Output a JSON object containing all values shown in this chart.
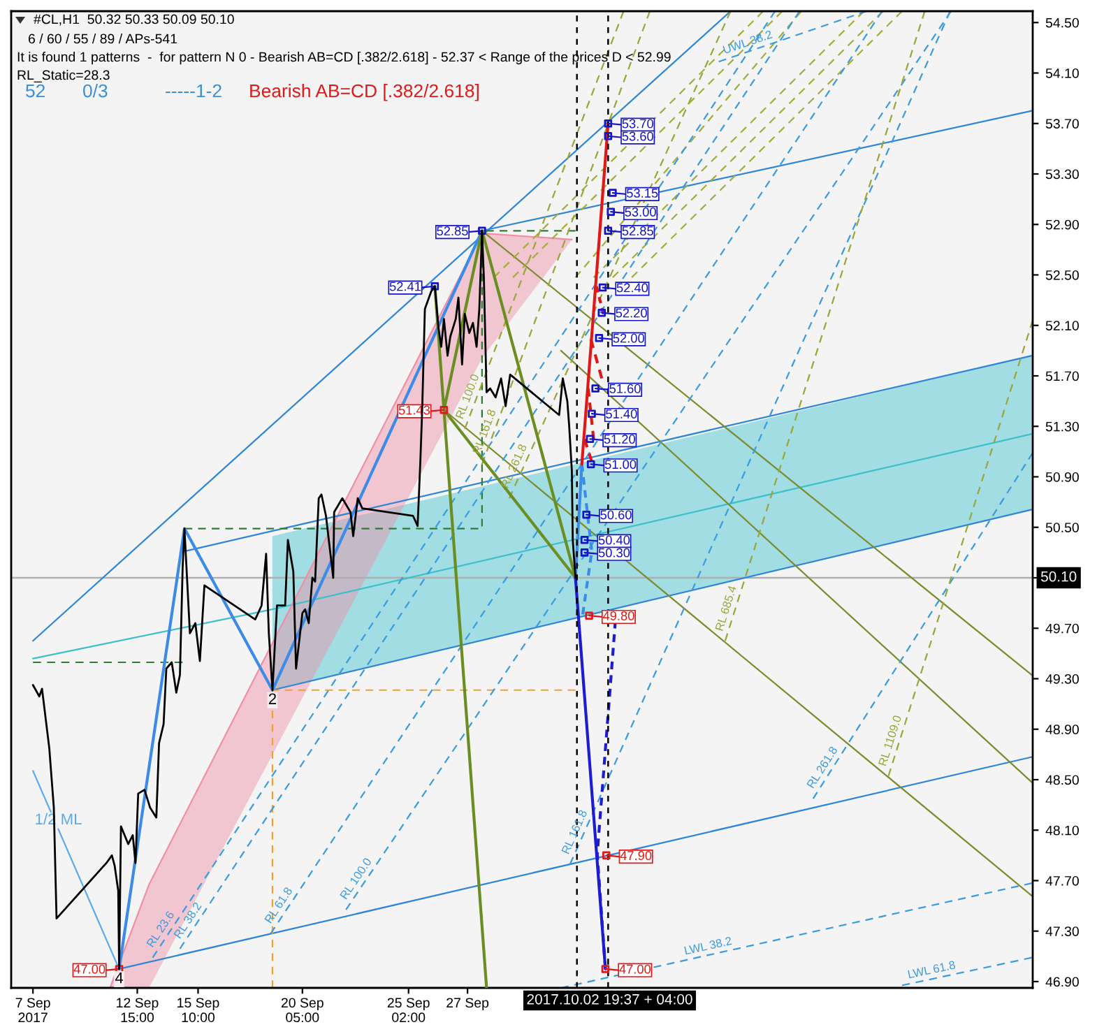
{
  "chart_data": {
    "type": "line",
    "title": "#CL,H1  50.32 50.33 50.09 50.10",
    "subtitle": "6 / 60 / 55 / 89 / APs-541",
    "annotations": [
      "It is found 1 patterns  -  for pattern N 0 - Bearish AB=CD [.382/2.618] - 52.37 < Range of the prices D < 52.99",
      "RL_Static=28.3",
      "52",
      "0/3",
      "-----1-2",
      "Bearish AB=CD [.382/2.618]",
      {
        "text": "2",
        "x": "2017-09-18T20:00",
        "y": 49.21
      },
      {
        "text": "4",
        "x": "2017-09-11T19:00",
        "y": 47.0
      }
    ],
    "xlim": [
      "2017-09-06T20:00",
      "2017-10-23T18:00"
    ],
    "ylim": [
      46.85,
      54.59
    ],
    "xticks": [
      {
        "value": "2017-09-07T20:00",
        "label": "7 Sep 2017"
      },
      {
        "value": "2017-09-12T15:00",
        "label": "12 Sep 15:00"
      },
      {
        "value": "2017-09-15T10:00",
        "label": "15 Sep 10:00"
      },
      {
        "value": "2017-09-20T05:00",
        "label": "20 Sep 05:00"
      },
      {
        "value": "2017-09-25T02:00",
        "label": "25 Sep 02:00"
      },
      {
        "value": "2017-09-27T19:00",
        "label": "27 Sep"
      }
    ],
    "yticks": [
      {
        "value": 46.9,
        "label": "46.90"
      },
      {
        "value": 47.3,
        "label": "47.30"
      },
      {
        "value": 47.7,
        "label": "47.70"
      },
      {
        "value": 48.1,
        "label": "48.10"
      },
      {
        "value": 48.5,
        "label": "48.50"
      },
      {
        "value": 48.9,
        "label": "48.90"
      },
      {
        "value": 49.3,
        "label": "49.30"
      },
      {
        "value": 49.7,
        "label": "49.70"
      },
      {
        "value": 50.1,
        "label": null
      },
      {
        "value": 50.5,
        "label": "50.50"
      },
      {
        "value": 50.9,
        "label": "50.90"
      },
      {
        "value": 51.3,
        "label": "51.30"
      },
      {
        "value": 51.7,
        "label": "51.70"
      },
      {
        "value": 52.1,
        "label": "52.10"
      },
      {
        "value": 52.5,
        "label": "52.50"
      },
      {
        "value": 52.9,
        "label": "52.90"
      },
      {
        "value": 53.3,
        "label": "53.30"
      },
      {
        "value": 53.7,
        "label": "53.70"
      },
      {
        "value": 54.1,
        "label": "54.10"
      },
      {
        "value": 54.5,
        "label": "54.50"
      }
    ],
    "ref_lines": [
      {
        "axis": "y",
        "value": 50.1,
        "label": "50.10",
        "color": "#b0b0b0",
        "line_style": "solid"
      },
      {
        "axis": "x",
        "value": "2017-10-02T19:37",
        "label": "2017.10.02 19:37 + 04:00",
        "color": "#000000",
        "line_style": "dashed"
      },
      {
        "axis": "x",
        "value": "2017-10-04T06:00",
        "color": "#000000",
        "line_style": "dashed"
      }
    ],
    "series": [
      {
        "color": "#3cc0cc",
        "line_style": "solid",
        "x": [
          "2017-09-07T20:00",
          "2017-09-18T20:00",
          "2017-10-23T17:00"
        ],
        "values": [
          49.46,
          49.85,
          51.24
        ],
        "lower": [
          null,
          49.21,
          50.64
        ],
        "upper": [
          null,
          50.43,
          51.86
        ]
      },
      {
        "color": "#f08fa5",
        "line_style": "solid",
        "x": [
          "2017-09-11T09:00",
          "2017-09-13T04:00",
          "2017-09-28T11:00",
          "2017-10-02T14:00"
        ],
        "values": [
          46.85,
          47.67,
          52.83,
          52.78
        ],
        "lower": [
          46.85,
          46.85,
          51.84,
          52.78
        ],
        "upper": [
          46.85,
          47.67,
          52.83,
          52.78
        ]
      },
      {
        "color": "#2f86d6",
        "line_style": "solid",
        "x": [
          "2017-09-11T19:00",
          "2017-10-23T17:00"
        ],
        "values": [
          47.0,
          48.68
        ]
      },
      {
        "color": "#2f86d6",
        "line_style": "solid",
        "x": [
          "2017-09-18T20:00",
          "2017-10-23T17:00"
        ],
        "values": [
          49.21,
          50.64
        ]
      },
      {
        "color": "#2f86d6",
        "line_style": "solid",
        "x": [
          "2017-09-14T19:00",
          "2017-10-23T17:00"
        ],
        "values": [
          50.31,
          51.86
        ]
      },
      {
        "color": "#2f86d6",
        "line_style": "solid",
        "x": [
          "2017-09-28T11:00",
          "2017-10-23T17:00"
        ],
        "values": [
          52.85,
          53.8
        ]
      },
      {
        "color": "#2f86d6",
        "line_style": "solid",
        "x": [
          "2017-09-07T20:00",
          "2017-10-09T21:00"
        ],
        "values": [
          49.6,
          54.59
        ]
      },
      {
        "color": "#7b8c2e",
        "line_style": "solid",
        "x": [
          "2017-09-28T11:00",
          "2017-10-23T17:00"
        ],
        "values": [
          52.85,
          49.33
        ]
      },
      {
        "color": "#7b8c2e",
        "line_style": "solid",
        "x": [
          "2017-10-02T02:00",
          "2017-10-23T17:00"
        ],
        "values": [
          51.9,
          48.48
        ]
      },
      {
        "color": "#7b8c2e",
        "line_style": "solid",
        "x": [
          "2017-09-26T17:00",
          "2017-10-23T17:00"
        ],
        "values": [
          51.43,
          47.58
        ]
      },
      {
        "color": "#a3ad3c",
        "line_style": "dashed",
        "x": [
          "2017-09-29T00:00",
          "2017-10-11T09:00"
        ],
        "values": [
          52.48,
          54.59
        ]
      },
      {
        "color": "#a3ad3c",
        "line_style": "dashed",
        "x": [
          "2017-09-29T21:00",
          "2017-10-12T06:00"
        ],
        "values": [
          52.48,
          54.59
        ]
      },
      {
        "color": "#a3ad3c",
        "line_style": "dashed",
        "x": [
          "2017-10-02T18:00",
          "2017-10-13T03:00"
        ],
        "values": [
          52.48,
          54.59
        ]
      },
      {
        "color": "#a3ad3c",
        "line_style": "dashed",
        "x": [
          "2017-10-03T14:00",
          "2017-10-16T00:00"
        ],
        "values": [
          52.48,
          54.59
        ]
      },
      {
        "color": "#a3ad3c",
        "line_style": "dashed",
        "x": [
          "2017-10-04T11:00",
          "2017-10-16T21:00"
        ],
        "values": [
          52.48,
          54.59
        ]
      },
      {
        "color": "#a3ad3c",
        "line_style": "dashed",
        "x": [
          "2017-10-05T08:00",
          "2017-10-17T18:00"
        ],
        "values": [
          52.48,
          54.59
        ]
      },
      {
        "color": "#2e7d32",
        "line_style": "dashed",
        "x": [
          "2017-09-07T20:00",
          "2017-09-14T17:00"
        ],
        "values": [
          49.43,
          49.43
        ]
      },
      {
        "color": "#2e7d32",
        "line_style": "dashed",
        "x": [
          "2017-09-14T19:00",
          "2017-09-28T11:00",
          "2017-09-28T11:00",
          "2017-10-02T18:00"
        ],
        "values": [
          50.49,
          50.49,
          52.85,
          52.85
        ]
      },
      {
        "color": "#f0a030",
        "line_style": "dashed",
        "x": [
          "2017-09-18T20:00",
          "2017-09-18T20:00",
          "2017-10-02T18:00"
        ],
        "values": [
          46.85,
          49.21,
          49.21
        ]
      },
      {
        "name": "1/2 ML",
        "color": "#5aaaf0",
        "line_style": "solid",
        "x": [
          "2017-09-07T20:00",
          "2017-09-11T19:00"
        ],
        "values": [
          48.57,
          47.0
        ]
      },
      {
        "name": "RL 23.6",
        "color": "#3a9be0",
        "line_style": "dashed",
        "x": [
          "2017-09-13T08:00",
          "2017-10-11T22:00"
        ],
        "values": [
          47.09,
          54.59
        ]
      },
      {
        "name": "RL 38.2",
        "color": "#3a9be0",
        "line_style": "dashed",
        "x": [
          "2017-09-14T14:00",
          "2017-10-13T01:00"
        ],
        "values": [
          47.16,
          54.59
        ]
      },
      {
        "name": "RL 61.8",
        "color": "#3a9be0",
        "line_style": "dashed",
        "x": [
          "2017-09-18T18:00",
          "2017-10-16T20:00"
        ],
        "values": [
          47.28,
          54.59
        ]
      },
      {
        "name": "RL 100.0",
        "color": "#3a9be0",
        "line_style": "dashed",
        "x": [
          "2017-09-22T05:00",
          "2017-10-20T00:00"
        ],
        "values": [
          47.47,
          54.59
        ]
      },
      {
        "name": "RL 161.8",
        "color": "#3a9be0",
        "line_style": "dashed",
        "x": [
          "2017-10-02T12:00",
          "2017-10-19T23:00"
        ],
        "values": [
          47.83,
          54.59
        ]
      },
      {
        "name": "RL 261.8",
        "color": "#3a9be0",
        "line_style": "dashed",
        "x": [
          "2017-10-13T16:00",
          "2017-10-23T18:00"
        ],
        "values": [
          48.35,
          51.09
        ]
      },
      {
        "name": "LWL 38.2",
        "color": "#3a9be0",
        "line_style": "dashed",
        "x": [
          "2017-10-02T02:00",
          "2017-10-23T17:00"
        ],
        "values": [
          46.85,
          47.68
        ]
      },
      {
        "name": "LWL 61.8",
        "color": "#3a9be0",
        "line_style": "dashed",
        "x": [
          "2017-10-17T18:00",
          "2017-10-23T17:00"
        ],
        "values": [
          46.87,
          47.09
        ]
      },
      {
        "name": "UWL 38.2",
        "color": "#3a9be0",
        "line_style": "dashed",
        "x": [
          "2017-10-09T08:00",
          "2017-10-16T03:00"
        ],
        "values": [
          54.19,
          54.59
        ]
      },
      {
        "name": "RL 100.0",
        "color": "#9aa53a",
        "line_style": "dashed",
        "x": [
          "2017-09-27T16:00",
          "2017-10-04T23:00"
        ],
        "values": [
          51.28,
          54.59
        ]
      },
      {
        "name": "RL 161.8",
        "color": "#9aa53a",
        "line_style": "dashed",
        "x": [
          "2017-09-28T11:00",
          "2017-10-06T04:00"
        ],
        "values": [
          51.0,
          54.59
        ]
      },
      {
        "name": "RL 261.8",
        "color": "#9aa53a",
        "line_style": "dashed",
        "x": [
          "2017-09-29T17:00",
          "2017-10-09T21:00"
        ],
        "values": [
          50.73,
          54.59
        ]
      },
      {
        "name": "RL 685.4",
        "color": "#9aa53a",
        "line_style": "dashed",
        "x": [
          "2017-10-09T15:00",
          "2017-10-18T19:00"
        ],
        "values": [
          49.6,
          54.59
        ]
      },
      {
        "name": "RL 1109.0",
        "color": "#9aa53a",
        "line_style": "dashed",
        "x": [
          "2017-10-17T03:00",
          "2017-10-23T18:00"
        ],
        "values": [
          48.53,
          52.14
        ]
      },
      {
        "color": "#000000",
        "line_style": "solid",
        "x": [
          "2017-09-07T20:00",
          "2017-09-08T03:00",
          "2017-09-08T06:00",
          "2017-09-08T14:00",
          "2017-09-08T19:00",
          "2017-09-08T22:00",
          "2017-09-11T05:00",
          "2017-09-11T11:00",
          "2017-09-11T14:00",
          "2017-09-11T18:00",
          "2017-09-11T19:00",
          "2017-09-11T21:00",
          "2017-09-12T05:00",
          "2017-09-12T10:00",
          "2017-09-12T13:00",
          "2017-09-12T16:00",
          "2017-09-12T23:00",
          "2017-09-13T05:00",
          "2017-09-13T12:00",
          "2017-09-13T15:00",
          "2017-09-13T20:00",
          "2017-09-13T23:00",
          "2017-09-14T05:00",
          "2017-09-14T10:00",
          "2017-09-14T14:00",
          "2017-09-14T17:00",
          "2017-09-14T19:00",
          "2017-09-15T01:00",
          "2017-09-15T07:00",
          "2017-09-15T12:00",
          "2017-09-15T17:00",
          "2017-09-18T01:00",
          "2017-09-18T08:00",
          "2017-09-18T13:00",
          "2017-09-18T16:00",
          "2017-09-18T20:00",
          "2017-09-19T01:00",
          "2017-09-19T10:00",
          "2017-09-19T13:00",
          "2017-09-19T19:00",
          "2017-09-19T22:00",
          "2017-09-20T05:00",
          "2017-09-20T08:00",
          "2017-09-20T12:00",
          "2017-09-20T16:00",
          "2017-09-20T19:00",
          "2017-09-20T23:00",
          "2017-09-21T02:00",
          "2017-09-21T07:00",
          "2017-09-21T15:00",
          "2017-09-21T16:00",
          "2017-09-22T01:00",
          "2017-09-22T10:00",
          "2017-09-22T13:00",
          "2017-09-22T18:00",
          "2017-09-22T23:00",
          "2017-09-25T07:00",
          "2017-09-25T12:00",
          "2017-09-25T15:00",
          "2017-09-25T17:00",
          "2017-09-25T20:00",
          "2017-09-26T03:00",
          "2017-09-26T07:00",
          "2017-09-26T11:00",
          "2017-09-26T14:00",
          "2017-09-26T17:00",
          "2017-09-26T21:00",
          "2017-09-27T00:00",
          "2017-09-27T06:00",
          "2017-09-27T09:00",
          "2017-09-27T13:00",
          "2017-09-27T16:00",
          "2017-09-27T21:00",
          "2017-09-28T01:00",
          "2017-09-28T05:00",
          "2017-09-28T08:00",
          "2017-09-28T11:00",
          "2017-09-28T13:00",
          "2017-09-28T16:00",
          "2017-09-28T20:00",
          "2017-09-29T02:00",
          "2017-09-29T08:00",
          "2017-09-29T13:00",
          "2017-09-29T18:00",
          "2017-10-02T00:00",
          "2017-10-02T04:00",
          "2017-10-02T09:00",
          "2017-10-02T11:00",
          "2017-10-02T14:00",
          "2017-10-02T15:00",
          "2017-10-02T18:00"
        ],
        "values": [
          49.25,
          49.16,
          49.22,
          48.75,
          48.28,
          47.4,
          47.84,
          47.9,
          47.82,
          47.62,
          47.0,
          48.13,
          47.99,
          48.06,
          47.84,
          48.39,
          48.42,
          48.28,
          48.2,
          48.79,
          48.94,
          49.38,
          49.43,
          49.19,
          49.33,
          50.18,
          50.49,
          49.66,
          49.74,
          49.44,
          50.04,
          49.77,
          49.88,
          50.29,
          49.66,
          49.21,
          49.88,
          49.88,
          50.4,
          50.15,
          49.38,
          49.82,
          49.85,
          49.74,
          50.1,
          50.07,
          50.73,
          50.76,
          50.59,
          50.1,
          50.62,
          50.73,
          50.62,
          50.43,
          50.73,
          50.65,
          50.59,
          50.51,
          51.02,
          51.42,
          52.23,
          52.37,
          52.41,
          52.08,
          51.93,
          52.15,
          51.86,
          52.01,
          52.15,
          52.32,
          51.79,
          52.19,
          52.04,
          52.12,
          51.93,
          52.23,
          52.85,
          52.48,
          51.57,
          51.6,
          51.53,
          51.68,
          51.46,
          51.71,
          51.39,
          51.68,
          51.5,
          51.31,
          50.95,
          50.4,
          50.1
        ]
      },
      {
        "color": "#3c8ce7",
        "line_style": "solid",
        "x": [
          "2017-09-11T19:00",
          "2017-09-14T19:00",
          "2017-09-18T20:00",
          "2017-09-28T11:00"
        ],
        "values": [
          47.0,
          50.49,
          49.21,
          52.85
        ]
      },
      {
        "color": "#6b8e23",
        "line_style": "solid",
        "x": [
          "2017-09-26T07:00",
          "2017-09-26T17:00",
          "2017-09-28T11:00",
          "2017-10-02T18:00",
          "2017-09-26T17:00",
          "2017-09-28T16:00"
        ],
        "values": [
          52.41,
          51.43,
          52.85,
          50.1,
          51.43,
          46.85
        ]
      },
      {
        "color": "#3c8ce7",
        "line_style": "solid",
        "x": [
          "2017-10-02T18:00",
          "2017-10-03T01:00"
        ],
        "values": [
          50.1,
          51.0
        ]
      },
      {
        "color": "#3c8ce7",
        "line_style": "dashed",
        "x": [
          "2017-10-03T01:00",
          "2017-10-03T12:00",
          "2017-10-03T02:00"
        ],
        "values": [
          51.0,
          50.31,
          49.81
        ]
      },
      {
        "color": "#1c1cd0",
        "line_style": "solid",
        "x": [
          "2017-10-02T18:00",
          "2017-10-04T03:00"
        ],
        "values": [
          50.1,
          47.0
        ]
      },
      {
        "color": "#1c1cd0",
        "line_style": "dashed",
        "x": [
          "2017-10-04T03:00",
          "2017-10-03T18:00",
          "2017-10-04T14:00"
        ],
        "values": [
          47.0,
          47.91,
          49.76
        ]
      },
      {
        "color": "#e01818",
        "line_style": "solid",
        "x": [
          "2017-10-03T01:00",
          "2017-10-04T06:00"
        ],
        "values": [
          51.0,
          53.7
        ]
      },
      {
        "color": "#e01818",
        "line_style": "dashed",
        "x": [
          "2017-10-03T17:00",
          "2017-10-04T01:00"
        ],
        "values": [
          52.41,
          52.19
        ]
      },
      {
        "color": "#e01818",
        "line_style": "dashed",
        "x": [
          "2017-10-03T11:00",
          "2017-10-03T23:00"
        ],
        "values": [
          51.99,
          51.68
        ]
      },
      {
        "color": "#e01818",
        "line_style": "dashed",
        "x": [
          "2017-10-03T08:00",
          "2017-10-03T14:00"
        ],
        "values": [
          51.6,
          51.2
        ]
      },
      {
        "color": "#e01818",
        "line_style": "dashed",
        "x": [
          "2017-10-03T04:00",
          "2017-10-03T12:00"
        ],
        "values": [
          51.2,
          51.02
        ]
      },
      {
        "type": "scatter",
        "color": "#1414c8",
        "marker": "square",
        "x": [
          "2017-10-04T06:00",
          "2017-10-04T06:00",
          "2017-10-04T11:00",
          "2017-10-04T09:00",
          "2017-10-04T06:00",
          "2017-10-04T00:00",
          "2017-10-03T23:00",
          "2017-10-03T20:00",
          "2017-10-03T16:00",
          "2017-10-03T12:00",
          "2017-10-03T10:00",
          "2017-10-03T11:00",
          "2017-10-03T06:00",
          "2017-10-03T04:00",
          "2017-10-03T04:00",
          "2017-09-28T11:00",
          "2017-09-26T07:00"
        ],
        "values": [
          53.7,
          53.6,
          53.15,
          53.0,
          52.85,
          52.4,
          52.2,
          52.0,
          51.6,
          51.4,
          51.2,
          51.0,
          50.6,
          50.4,
          50.3,
          52.85,
          52.41
        ],
        "value_labels": [
          "53.70",
          "53.60",
          "53.15",
          "53.00",
          "52.85",
          "52.40",
          "52.20",
          "52.00",
          "51.60",
          "51.40",
          "51.20",
          "51.00",
          "50.60",
          "50.40",
          "50.30",
          "52.85",
          "52.41"
        ]
      },
      {
        "type": "scatter",
        "color": "#e01818",
        "marker": "square",
        "x": [
          "2017-09-26T17:00",
          "2017-10-03T09:00",
          "2017-10-04T04:00",
          "2017-10-04T03:00",
          "2017-09-11T19:00"
        ],
        "values": [
          51.43,
          49.8,
          47.9,
          47.0,
          47.0
        ],
        "value_labels": [
          "51.43",
          "49.80",
          "47.90",
          "47.00",
          "47.00"
        ]
      }
    ]
  }
}
